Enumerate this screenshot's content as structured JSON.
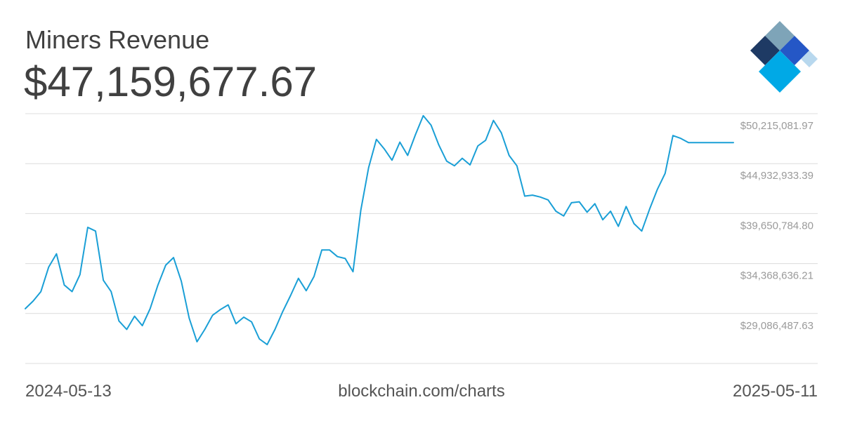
{
  "chart_data": {
    "type": "line",
    "title": "Miners Revenue",
    "current_value": "$47,159,677.67",
    "source": "blockchain.com/charts",
    "x_start_label": "2024-05-13",
    "x_end_label": "2025-05-11",
    "x_range": [
      "2024-05-13",
      "2025-05-11"
    ],
    "y_ticks": [
      {
        "value": 29086487.63,
        "label": "$29,086,487.63"
      },
      {
        "value": 34368636.21,
        "label": "$34,368,636.21"
      },
      {
        "value": 39650784.8,
        "label": "$39,650,784.80"
      },
      {
        "value": 44932933.39,
        "label": "$44,932,933.39"
      },
      {
        "value": 50215081.97,
        "label": "$50,215,081.97"
      }
    ],
    "ylim": [
      23804339.05,
      50215081.97
    ],
    "grid": true,
    "line_color": "#1a9fd6",
    "series": [
      {
        "x": [
          "2024-05-13",
          "2024-05-17",
          "2024-05-21",
          "2024-05-25",
          "2024-05-29",
          "2024-06-02",
          "2024-06-06",
          "2024-06-10",
          "2024-06-14",
          "2024-06-18",
          "2024-06-22",
          "2024-06-26",
          "2024-06-30",
          "2024-07-04",
          "2024-07-08",
          "2024-07-12",
          "2024-07-16",
          "2024-07-20",
          "2024-07-24",
          "2024-07-28",
          "2024-08-01",
          "2024-08-05",
          "2024-08-09",
          "2024-08-13",
          "2024-08-17",
          "2024-08-21",
          "2024-08-25",
          "2024-08-29",
          "2024-09-02",
          "2024-09-06",
          "2024-09-10",
          "2024-09-14",
          "2024-09-18",
          "2024-09-22",
          "2024-09-26",
          "2024-09-30",
          "2024-10-04",
          "2024-10-08",
          "2024-10-12",
          "2024-10-16",
          "2024-10-20",
          "2024-10-24",
          "2024-10-28",
          "2024-11-01",
          "2024-11-05",
          "2024-11-09",
          "2024-11-13",
          "2024-11-17",
          "2024-11-21",
          "2024-11-25",
          "2024-11-29",
          "2024-12-03",
          "2024-12-07",
          "2024-12-11",
          "2024-12-15",
          "2024-12-19",
          "2024-12-23",
          "2024-12-27",
          "2024-12-31",
          "2025-01-04",
          "2025-01-08",
          "2025-01-12",
          "2025-01-16",
          "2025-01-20",
          "2025-01-24",
          "2025-01-28",
          "2025-02-01",
          "2025-02-05",
          "2025-02-09",
          "2025-02-13",
          "2025-02-17",
          "2025-02-21",
          "2025-02-25",
          "2025-03-01",
          "2025-03-05",
          "2025-03-09",
          "2025-03-13",
          "2025-03-17",
          "2025-03-21",
          "2025-03-25",
          "2025-03-29",
          "2025-04-02",
          "2025-04-06",
          "2025-04-10",
          "2025-04-14",
          "2025-04-18",
          "2025-04-22",
          "2025-04-26",
          "2025-04-30",
          "2025-05-04",
          "2025-05-08",
          "2025-05-11"
        ],
        "values": [
          29600000,
          30400000,
          31400000,
          34000000,
          35400000,
          32100000,
          31400000,
          33200000,
          38200000,
          37800000,
          32600000,
          31400000,
          28300000,
          27400000,
          28800000,
          27800000,
          29600000,
          32100000,
          34200000,
          35000000,
          32500000,
          28600000,
          26100000,
          27400000,
          28900000,
          29500000,
          30000000,
          28000000,
          28700000,
          28200000,
          26400000,
          25800000,
          27400000,
          29300000,
          31000000,
          32800000,
          31500000,
          33000000,
          35800000,
          35800000,
          35100000,
          34900000,
          33500000,
          40000000,
          44500000,
          47500000,
          46500000,
          45300000,
          47200000,
          45800000,
          48000000,
          50000000,
          49000000,
          46900000,
          45200000,
          44700000,
          45500000,
          44800000,
          46800000,
          47400000,
          49500000,
          48200000,
          45800000,
          44700000,
          41500000,
          41600000,
          41400000,
          41100000,
          39900000,
          39400000,
          40800000,
          40900000,
          39800000,
          40700000,
          39000000,
          39900000,
          38300000,
          40400000,
          38600000,
          37800000,
          40100000,
          42200000,
          43900000,
          47900000,
          47600000,
          47159677.67,
          47159677.67,
          47159677.67,
          47159677.67,
          47159677.67,
          47159677.67,
          47159677.67
        ]
      }
    ]
  },
  "logo": {
    "colors": [
      "#7ea4b8",
      "#1e3a64",
      "#2557c6",
      "#b8d8ee",
      "#00a9e6"
    ]
  }
}
